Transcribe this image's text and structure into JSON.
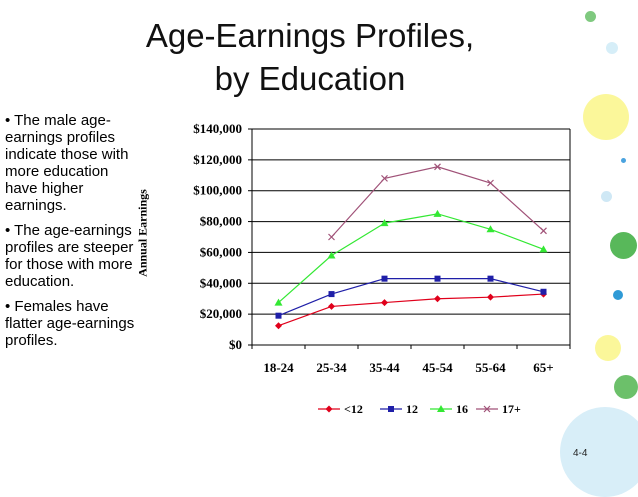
{
  "slide": {
    "title_line1": "Age-Earnings Profiles,",
    "title_line2": "by Education",
    "bullets": [
      "• The male age-earnings profiles indicate those with more education have higher earnings.",
      "• The age-earnings profiles are steeper for those with more education.",
      "• Females have flatter age-earnings profiles."
    ],
    "page_number": "4-4"
  },
  "chart_data": {
    "type": "line",
    "title": "",
    "xlabel": "",
    "ylabel": "Annual Earnings",
    "categories": [
      "18-24",
      "25-34",
      "35-44",
      "45-54",
      "55-64",
      "65+"
    ],
    "ylim": [
      0,
      140000
    ],
    "yticks": [
      "$0",
      "$20,000",
      "$40,000",
      "$60,000",
      "$80,000",
      "$100,000",
      "$120,000",
      "$140,000"
    ],
    "grid": true,
    "legend_position": "bottom",
    "series": [
      {
        "name": "<12",
        "color": "#e0001b",
        "marker": "diamond",
        "values": [
          12500,
          25000,
          27500,
          30000,
          31000,
          33000
        ]
      },
      {
        "name": "12",
        "color": "#1f1fa8",
        "marker": "square",
        "values": [
          19000,
          33000,
          43000,
          43000,
          43000,
          34500
        ]
      },
      {
        "name": "16",
        "color": "#33e833",
        "marker": "triangle",
        "values": [
          27500,
          58000,
          79000,
          85000,
          75000,
          62000
        ]
      },
      {
        "name": "17+",
        "color": "#a05278",
        "marker": "x",
        "values": [
          null,
          70000,
          108000,
          115500,
          105000,
          74000
        ]
      }
    ]
  }
}
